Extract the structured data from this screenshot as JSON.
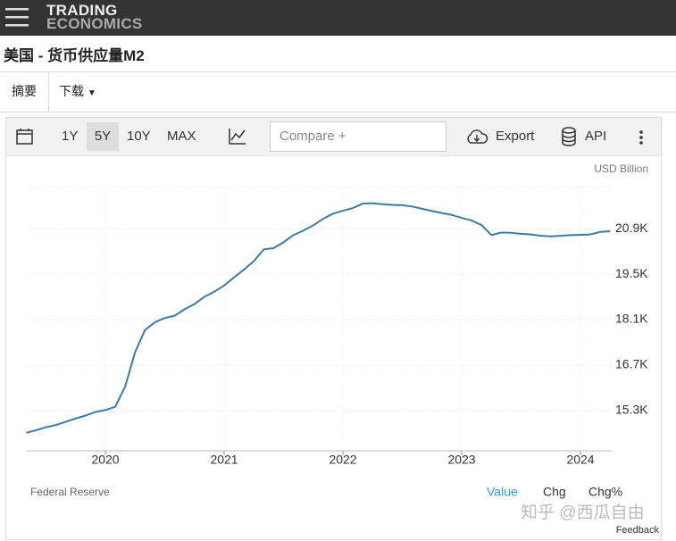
{
  "header": {
    "logo_line1": "TRADING",
    "logo_line2": "ECONOMICS",
    "page_title": "美国 - 货币供应量M2"
  },
  "tabs": [
    "摘要",
    "下载"
  ],
  "toolbar": {
    "ranges": [
      "1Y",
      "5Y",
      "10Y",
      "MAX"
    ],
    "compare": "Compare +",
    "export": "Export",
    "api": "API"
  },
  "footer": {
    "modes": [
      "Value",
      "Chg",
      "Chg%"
    ],
    "feedback": "Feedback"
  },
  "watermark": "知乎 @西瓜自由",
  "chart_data": {
    "type": "line",
    "unit": "USD Billion",
    "source": "Federal Reserve",
    "color": "#3b7ba8",
    "grid": true,
    "x": [
      2019.333,
      2019.417,
      2019.5,
      2019.583,
      2019.667,
      2019.75,
      2019.833,
      2019.917,
      2020.0,
      2020.083,
      2020.167,
      2020.25,
      2020.333,
      2020.417,
      2020.5,
      2020.583,
      2020.667,
      2020.75,
      2020.833,
      2020.917,
      2021.0,
      2021.083,
      2021.167,
      2021.25,
      2021.333,
      2021.417,
      2021.5,
      2021.583,
      2021.667,
      2021.75,
      2021.833,
      2021.917,
      2022.0,
      2022.083,
      2022.167,
      2022.25,
      2022.333,
      2022.417,
      2022.5,
      2022.583,
      2022.667,
      2022.75,
      2022.833,
      2022.917,
      2023.0,
      2023.083,
      2023.167,
      2023.25,
      2023.333,
      2023.417,
      2023.5,
      2023.583,
      2023.667,
      2023.75,
      2023.833,
      2023.917,
      2024.0,
      2024.083,
      2024.167,
      2024.25
    ],
    "values": [
      14620,
      14700,
      14790,
      14860,
      14960,
      15060,
      15150,
      15260,
      15320,
      15420,
      16050,
      17100,
      17780,
      18020,
      18150,
      18220,
      18420,
      18580,
      18800,
      18960,
      19150,
      19400,
      19640,
      19900,
      20260,
      20300,
      20480,
      20700,
      20840,
      21000,
      21200,
      21360,
      21450,
      21530,
      21670,
      21680,
      21650,
      21630,
      21620,
      21580,
      21510,
      21440,
      21380,
      21320,
      21230,
      21150,
      21010,
      20700,
      20780,
      20770,
      20740,
      20720,
      20680,
      20660,
      20680,
      20700,
      20710,
      20720,
      20800,
      20820
    ],
    "xlim": [
      2019.338,
      2024.263
    ],
    "ylim": [
      14065,
      22165
    ],
    "xticks": [
      2020,
      2021,
      2022,
      2023,
      2024
    ],
    "yticks": [
      {
        "value": 15300,
        "label": "15.3K"
      },
      {
        "value": 16700,
        "label": "16.7K"
      },
      {
        "value": 18100,
        "label": "18.1K"
      },
      {
        "value": 19500,
        "label": "19.5K"
      },
      {
        "value": 20900,
        "label": "20.9K"
      }
    ]
  }
}
